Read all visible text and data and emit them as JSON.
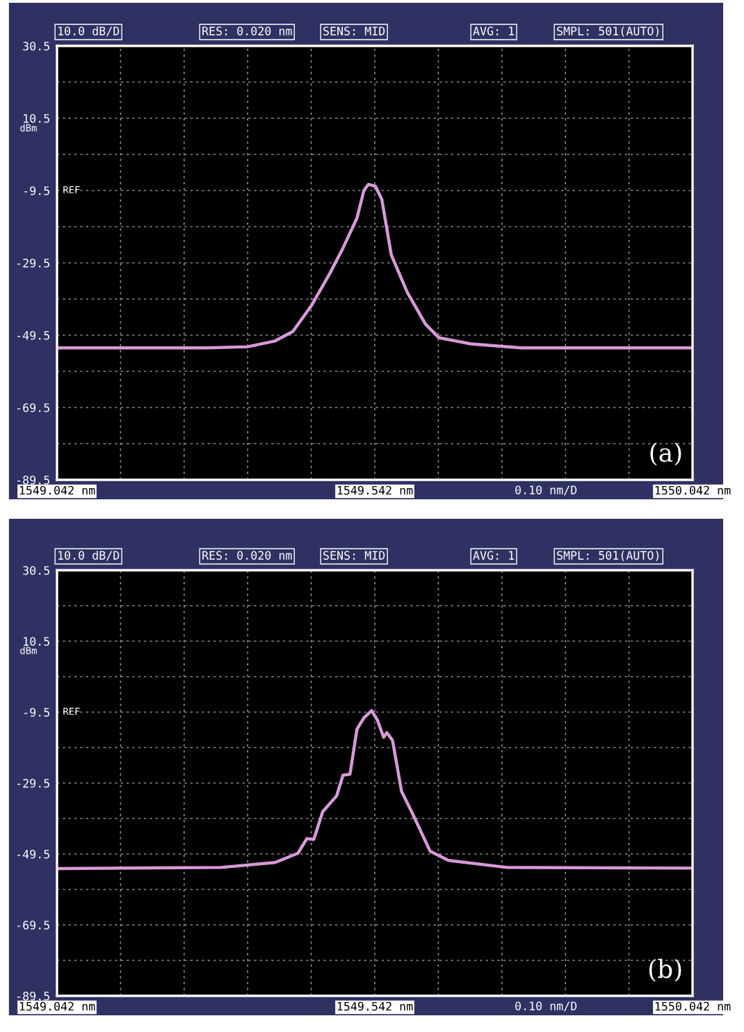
{
  "chart_data": [
    {
      "type": "line",
      "xlim": [
        1549.042,
        1550.042
      ],
      "ylim": [
        -89.5,
        30.5
      ],
      "ylabel": "dBm",
      "xticks": [
        {
          "value": 1549.042,
          "label": "1549.042 nm"
        },
        {
          "value": 1549.142,
          "label": null
        },
        {
          "value": 1549.242,
          "label": null
        },
        {
          "value": 1549.342,
          "label": null
        },
        {
          "value": 1549.442,
          "label": null
        },
        {
          "value": 1549.542,
          "label": "1549.542 nm"
        },
        {
          "value": 1549.642,
          "label": null
        },
        {
          "value": 1549.742,
          "label": null
        },
        {
          "value": 1549.842,
          "label": null
        },
        {
          "value": 1549.942,
          "label": null
        },
        {
          "value": 1550.042,
          "label": "1550.042 nm"
        }
      ],
      "yticks": [
        -89.5,
        {
          "value": -79.5,
          "label": null
        },
        -69.5,
        {
          "value": -59.5,
          "label": null
        },
        -49.5,
        {
          "value": -39.5,
          "label": null
        },
        -29.5,
        {
          "value": -19.5,
          "label": null
        },
        -9.5,
        {
          "value": 0.5,
          "label": null
        },
        10.5,
        {
          "value": 20.5,
          "label": null
        },
        30.5
      ],
      "grid": true,
      "line_style": "solid",
      "marker": "none",
      "annotations": [
        "10.0 dB/D",
        "RES: 0.020 nm",
        "SENS: MID",
        "AVG: 1",
        "SMPL: 501(AUTO)",
        "0.10 nm/D",
        "REF",
        "(a)"
      ],
      "series": [
        {
          "color": "#d89ad8",
          "x": [
            1549.042,
            1549.277,
            1549.342,
            1549.385,
            1549.413,
            1549.442,
            1549.471,
            1549.492,
            1549.514,
            1549.525,
            1549.532,
            1549.543,
            1549.553,
            1549.568,
            1549.593,
            1549.622,
            1549.643,
            1549.693,
            1549.773,
            1550.042
          ],
          "values": [
            -53,
            -53,
            -52.7,
            -51.1,
            -48.5,
            -41.4,
            -32.5,
            -25.4,
            -17.1,
            -9.4,
            -7.8,
            -8.3,
            -11.9,
            -27.3,
            -37.6,
            -46.5,
            -50.2,
            -51.9,
            -53,
            -53
          ]
        }
      ]
    },
    {
      "type": "line",
      "xlim": [
        1549.042,
        1550.042
      ],
      "ylim": [
        -89.5,
        30.5
      ],
      "ylabel": "dBm",
      "xticks": [
        {
          "value": 1549.042,
          "label": "1549.042 nm"
        },
        {
          "value": 1549.142,
          "label": null
        },
        {
          "value": 1549.242,
          "label": null
        },
        {
          "value": 1549.342,
          "label": null
        },
        {
          "value": 1549.442,
          "label": null
        },
        {
          "value": 1549.542,
          "label": "1549.542 nm"
        },
        {
          "value": 1549.642,
          "label": null
        },
        {
          "value": 1549.742,
          "label": null
        },
        {
          "value": 1549.842,
          "label": null
        },
        {
          "value": 1549.942,
          "label": null
        },
        {
          "value": 1550.042,
          "label": "1550.042 nm"
        }
      ],
      "yticks": [
        -89.5,
        {
          "value": -79.5,
          "label": null
        },
        -69.5,
        {
          "value": -59.5,
          "label": null
        },
        -49.5,
        {
          "value": -39.5,
          "label": null
        },
        -29.5,
        {
          "value": -19.5,
          "label": null
        },
        -9.5,
        {
          "value": 0.5,
          "label": null
        },
        10.5,
        {
          "value": 20.5,
          "label": null
        },
        30.5
      ],
      "grid": true,
      "line_style": "solid",
      "marker": "none",
      "annotations": [
        "10.0 dB/D",
        "RES: 0.020 nm",
        "SENS: MID",
        "AVG: 1",
        "SMPL: 501(AUTO)",
        "0.10 nm/D",
        "REF",
        "(b)"
      ],
      "series": [
        {
          "color": "#d89ad8",
          "x": [
            1549.042,
            1549.3,
            1549.385,
            1549.421,
            1549.435,
            1549.446,
            1549.46,
            1549.482,
            1549.492,
            1549.503,
            1549.514,
            1549.525,
            1549.537,
            1549.546,
            1549.556,
            1549.561,
            1549.57,
            1549.584,
            1549.6,
            1549.629,
            1549.658,
            1549.75,
            1550.042
          ],
          "values": [
            -53.6,
            -53.3,
            -51.9,
            -49.3,
            -45.2,
            -45.4,
            -37.6,
            -33.1,
            -27.3,
            -27,
            -14.3,
            -11.1,
            -9.1,
            -11.7,
            -16.6,
            -15.3,
            -17.5,
            -31.8,
            -37.6,
            -48.7,
            -51.3,
            -53.3,
            -53.5
          ]
        }
      ]
    }
  ]
}
